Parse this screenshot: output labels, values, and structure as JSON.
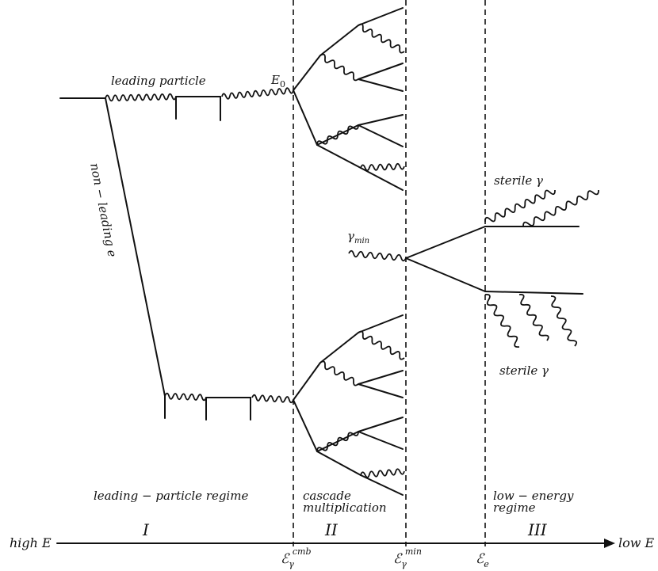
{
  "labels": {
    "leading_particle": "leading particle",
    "e0": "E",
    "e0_sub": "0",
    "non_leading": "non − leading e",
    "gamma_min": "γ",
    "gamma_min_sub": "min",
    "sterile_top": "sterile γ",
    "sterile_bottom": "sterile γ",
    "regime1": "leading − particle regime",
    "regime2_line1": "cascade",
    "regime2_line2": "multiplication",
    "regime3_line1": "low − energy",
    "regime3_line2": "regime",
    "high_e": "high E",
    "low_e": "low E",
    "roman1": "I",
    "roman2": "II",
    "roman3": "III",
    "axis_cmb_main": "ℰ",
    "axis_cmb_sub": "γ",
    "axis_cmb_sup": "cmb",
    "axis_min_main": "ℰ",
    "axis_min_sub": "γ",
    "axis_min_sup": "min",
    "axis_e_main": "ℰ",
    "axis_e_sub": "e"
  }
}
